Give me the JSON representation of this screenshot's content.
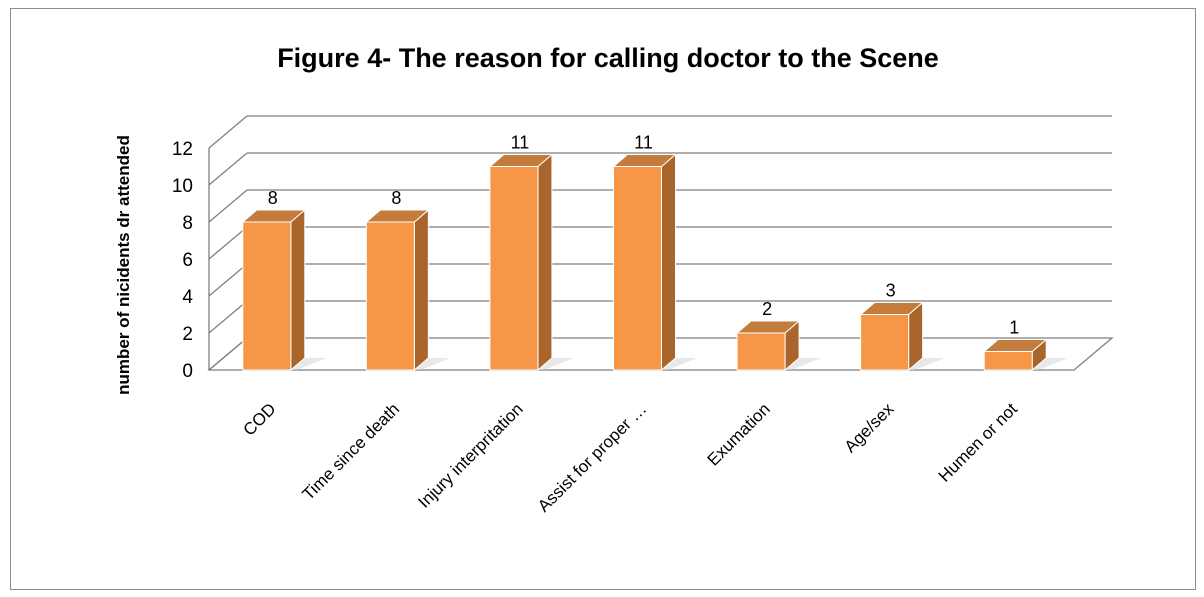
{
  "chart_data": {
    "type": "bar",
    "title": "Figure 4- The reason for calling doctor to the Scene",
    "xlabel": "",
    "ylabel": "number of nicidents dr attended",
    "categories": [
      "COD",
      "Time since death",
      "Injury interpritation",
      "Assist for proper …",
      "Exumation",
      "Age/sex",
      "Humen or not"
    ],
    "values": [
      8,
      8,
      11,
      11,
      2,
      3,
      1
    ],
    "data_labels": [
      "8",
      "8",
      "11",
      "11",
      "2",
      "3",
      "1"
    ],
    "ylim": [
      0,
      12
    ],
    "yticks": [
      "0",
      "2",
      "4",
      "6",
      "8",
      "10",
      "12"
    ],
    "grid": true,
    "legend": "none",
    "style": "3d-column",
    "colors": {
      "bar_front": "#f79646",
      "bar_side": "#a9652c",
      "bar_top": "#c47c3c",
      "bar_outline": "#ffffff",
      "gridline": "#7f7f7f"
    }
  }
}
